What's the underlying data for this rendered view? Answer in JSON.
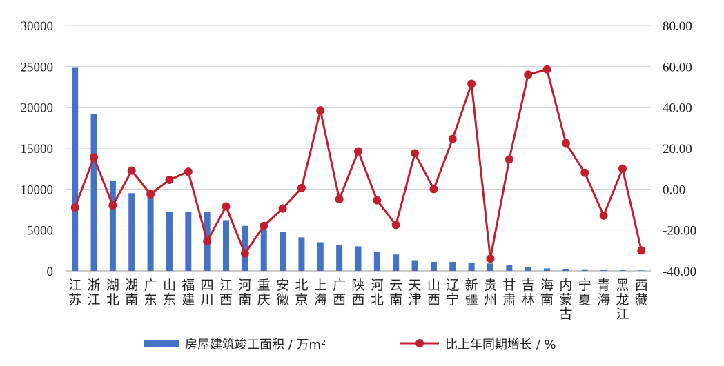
{
  "chart_data": {
    "type": "bar+line",
    "categories": [
      "江苏",
      "浙江",
      "湖北",
      "湖南",
      "广东",
      "山东",
      "福建",
      "四川",
      "江西",
      "河南",
      "重庆",
      "安徽",
      "北京",
      "上海",
      "广西",
      "陕西",
      "河北",
      "云南",
      "天津",
      "山西",
      "辽宁",
      "新疆",
      "贵州",
      "甘肃",
      "吉林",
      "海南",
      "内蒙古",
      "宁夏",
      "青海",
      "黑龙江",
      "西藏"
    ],
    "series": [
      {
        "name": "房屋建筑竣工面积 / 万m²",
        "type": "bar",
        "axis": "left",
        "color": "#4472C4",
        "values": [
          24900,
          19200,
          11000,
          9500,
          9400,
          7200,
          7200,
          7200,
          6200,
          5500,
          5000,
          4800,
          4100,
          3500,
          3200,
          3000,
          2300,
          2000,
          1300,
          1100,
          1100,
          1000,
          900,
          700,
          450,
          300,
          250,
          200,
          120,
          100,
          60
        ]
      },
      {
        "name": "比上年同期增长 / %",
        "type": "line",
        "axis": "right",
        "color": "#C0202E",
        "values": [
          -9,
          15.5,
          -8,
          9,
          -2.5,
          4.5,
          8.5,
          -25.5,
          -8.5,
          -31.5,
          -18,
          -9.5,
          0.5,
          38.5,
          -5,
          18.5,
          -5.5,
          -17.5,
          17.5,
          0,
          24.5,
          51.5,
          -34,
          14.5,
          56,
          58.5,
          22.5,
          8,
          -13,
          10,
          -30
        ]
      }
    ],
    "y_left": {
      "min": 0,
      "max": 30000,
      "ticks": [
        "0",
        "5000",
        "10000",
        "15000",
        "20000",
        "25000",
        "30000"
      ]
    },
    "y_right": {
      "min": -40,
      "max": 80,
      "ticks": [
        "-40.00",
        "-20.00",
        "0.00",
        "20.00",
        "40.00",
        "60.00",
        "80.00"
      ]
    },
    "grid": true,
    "legend_position": "bottom"
  }
}
